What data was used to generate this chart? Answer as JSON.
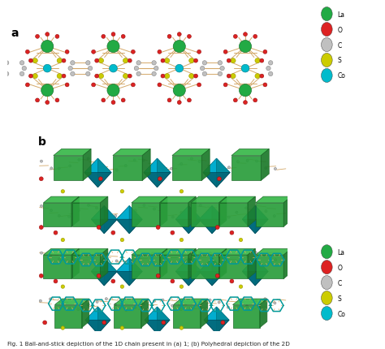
{
  "fig_width": 4.74,
  "fig_height": 4.31,
  "dpi": 100,
  "bg": "#ffffff",
  "La_color": "#22aa44",
  "O_color": "#dd2222",
  "C_color": "#c0c0c0",
  "S_color": "#cccc00",
  "Co_color": "#00bbcc",
  "bond_color": "#d4a96a",
  "ring_color": "#009999",
  "La_dark": "#156628",
  "La_mid": "#1e8833",
  "La_light": "#3ab84a",
  "Co_dark": "#007788",
  "Co_mid": "#00aacc",
  "Co_light": "#00ccee",
  "legend_items": [
    {
      "label": "La",
      "color": "#22aa44"
    },
    {
      "label": "O",
      "color": "#dd2222"
    },
    {
      "label": "C",
      "color": "#c0c0c0"
    },
    {
      "label": "S",
      "color": "#cccc00"
    },
    {
      "label": "Co",
      "color": "#00bbcc"
    }
  ],
  "caption": "Fig. 1 Ball-and-stick depiction of the 1D chain present in (a) 1; (b) Polyhedral depiction of the 2D",
  "caption_fontsize": 5.2
}
